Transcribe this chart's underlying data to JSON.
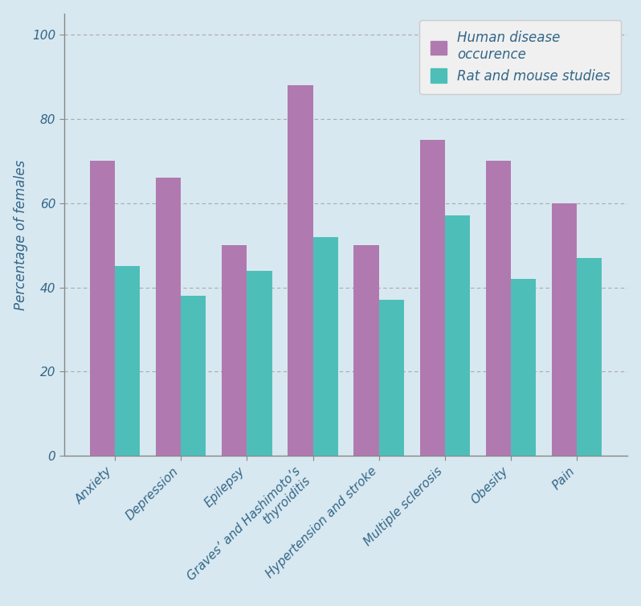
{
  "categories": [
    "Anxiety",
    "Depression",
    "Epilepsy",
    "Graves’ and Hashimoto’s\nthyroiditis",
    "Hypertension and stroke",
    "Multiple sclerosis",
    "Obesity",
    "Pain"
  ],
  "human_disease": [
    70,
    66,
    50,
    88,
    50,
    75,
    70,
    60
  ],
  "rat_mouse": [
    45,
    38,
    44,
    52,
    37,
    57,
    42,
    47
  ],
  "human_color": "#b07ab0",
  "rat_color": "#4dbfb8",
  "ylabel": "Percentage of females",
  "ylim": [
    0,
    105
  ],
  "yticks": [
    0,
    20,
    40,
    60,
    80,
    100
  ],
  "background_color": "#d8e8f0",
  "legend_label_human": "Human disease\noccurence",
  "legend_label_rat": "Rat and mouse studies",
  "legend_bg": "#f0f0f0",
  "legend_text_color": "#336688",
  "bar_width": 0.38,
  "tick_fontsize": 11,
  "ylabel_fontsize": 12,
  "axis_text_color": "#336688",
  "grid_color": "#aaaaaa",
  "spine_color": "#888888"
}
